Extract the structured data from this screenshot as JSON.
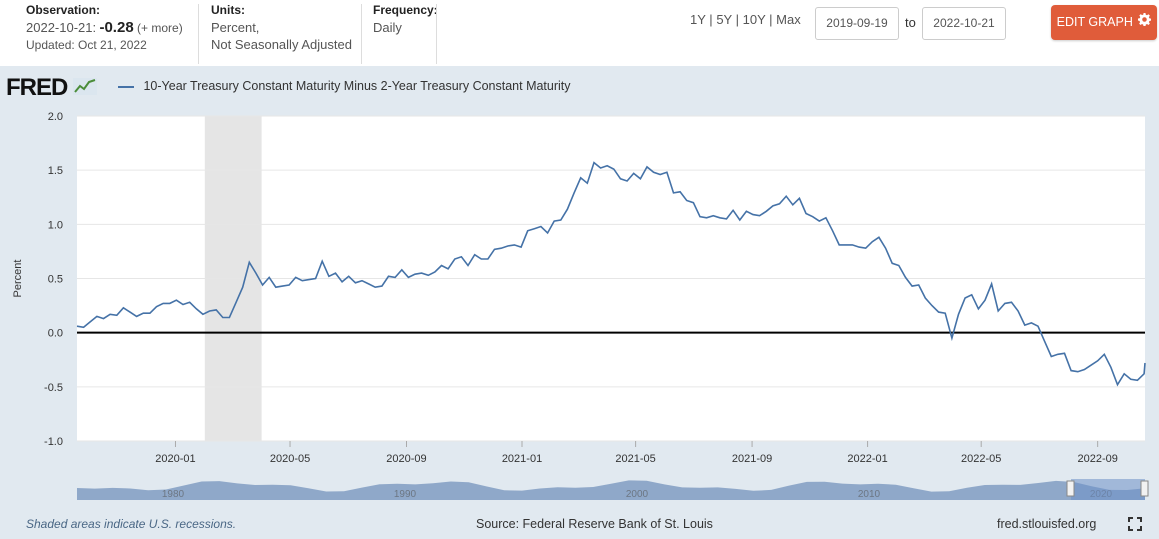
{
  "header": {
    "observation_label": "Observation:",
    "observation_date": "2022-10-21:",
    "observation_value": "-0.28",
    "observation_more": "(+ more)",
    "updated": "Updated: Oct 21, 2022",
    "units_label": "Units:",
    "units_value_1": "Percent,",
    "units_value_2": "Not Seasonally Adjusted",
    "frequency_label": "Frequency:",
    "frequency_value": "Daily",
    "range_1y": "1Y",
    "range_5y": "5Y",
    "range_10y": "10Y",
    "range_max": "Max",
    "sep": "|",
    "start_date": "2019-09-19",
    "to_label": "to",
    "end_date": "2022-10-21",
    "edit_label": "EDIT GRAPH"
  },
  "logo_text": "FRED",
  "colors": {
    "series": "#4572a7",
    "edit_button": "#e05c3a",
    "recession": "#e5e5e5",
    "navigator": "#4572a7"
  },
  "footer": {
    "recession_note": "Shaded areas indicate U.S. recessions.",
    "source": "Source: Federal Reserve Bank of St. Louis",
    "url": "fred.stlouisfed.org"
  },
  "navigator": {
    "labels": [
      "1980",
      "1990",
      "2000",
      "2010",
      "2020"
    ]
  },
  "chart_data": {
    "type": "line",
    "title": "",
    "ylabel": "Percent",
    "xlabel": "",
    "ylim": [
      -1.0,
      2.0
    ],
    "xlim": [
      "2019-09-19",
      "2022-10-21"
    ],
    "yticks": [
      "-1.0",
      "-0.5",
      "0.0",
      "0.5",
      "1.0",
      "1.5",
      "2.0"
    ],
    "xticks": [
      {
        "date": "2020-01-01",
        "label": "2020-01"
      },
      {
        "date": "2020-05-01",
        "label": "2020-05"
      },
      {
        "date": "2020-09-01",
        "label": "2020-09"
      },
      {
        "date": "2021-01-01",
        "label": "2021-01"
      },
      {
        "date": "2021-05-01",
        "label": "2021-05"
      },
      {
        "date": "2021-09-01",
        "label": "2021-09"
      },
      {
        "date": "2022-01-01",
        "label": "2022-01"
      },
      {
        "date": "2022-05-01",
        "label": "2022-05"
      },
      {
        "date": "2022-09-01",
        "label": "2022-09"
      }
    ],
    "recession": [
      "2020-02-01",
      "2020-04-01"
    ],
    "zero_line": 0,
    "grid": true,
    "legend_position": "top-left",
    "series": [
      {
        "name": "10-Year Treasury Constant Maturity Minus 2-Year Treasury Constant Maturity",
        "points": [
          [
            "2019-09-19",
            0.06
          ],
          [
            "2019-09-26",
            0.05
          ],
          [
            "2019-10-03",
            0.1
          ],
          [
            "2019-10-10",
            0.15
          ],
          [
            "2019-10-17",
            0.13
          ],
          [
            "2019-10-24",
            0.17
          ],
          [
            "2019-10-31",
            0.16
          ],
          [
            "2019-11-07",
            0.23
          ],
          [
            "2019-11-14",
            0.19
          ],
          [
            "2019-11-21",
            0.15
          ],
          [
            "2019-11-28",
            0.18
          ],
          [
            "2019-12-05",
            0.18
          ],
          [
            "2019-12-12",
            0.24
          ],
          [
            "2019-12-19",
            0.27
          ],
          [
            "2019-12-26",
            0.27
          ],
          [
            "2020-01-02",
            0.3
          ],
          [
            "2020-01-09",
            0.26
          ],
          [
            "2020-01-16",
            0.28
          ],
          [
            "2020-01-23",
            0.22
          ],
          [
            "2020-01-30",
            0.17
          ],
          [
            "2020-02-06",
            0.2
          ],
          [
            "2020-02-13",
            0.21
          ],
          [
            "2020-02-20",
            0.14
          ],
          [
            "2020-02-27",
            0.14
          ],
          [
            "2020-03-05",
            0.28
          ],
          [
            "2020-03-12",
            0.42
          ],
          [
            "2020-03-19",
            0.65
          ],
          [
            "2020-03-26",
            0.55
          ],
          [
            "2020-04-02",
            0.44
          ],
          [
            "2020-04-09",
            0.51
          ],
          [
            "2020-04-16",
            0.42
          ],
          [
            "2020-04-23",
            0.43
          ],
          [
            "2020-04-30",
            0.44
          ],
          [
            "2020-05-07",
            0.51
          ],
          [
            "2020-05-14",
            0.48
          ],
          [
            "2020-05-21",
            0.49
          ],
          [
            "2020-05-28",
            0.5
          ],
          [
            "2020-06-04",
            0.66
          ],
          [
            "2020-06-11",
            0.52
          ],
          [
            "2020-06-18",
            0.55
          ],
          [
            "2020-06-25",
            0.47
          ],
          [
            "2020-07-02",
            0.52
          ],
          [
            "2020-07-09",
            0.46
          ],
          [
            "2020-07-16",
            0.48
          ],
          [
            "2020-07-23",
            0.45
          ],
          [
            "2020-07-30",
            0.42
          ],
          [
            "2020-08-06",
            0.43
          ],
          [
            "2020-08-13",
            0.52
          ],
          [
            "2020-08-20",
            0.51
          ],
          [
            "2020-08-27",
            0.58
          ],
          [
            "2020-09-03",
            0.51
          ],
          [
            "2020-09-10",
            0.54
          ],
          [
            "2020-09-17",
            0.55
          ],
          [
            "2020-09-24",
            0.53
          ],
          [
            "2020-10-01",
            0.56
          ],
          [
            "2020-10-08",
            0.62
          ],
          [
            "2020-10-15",
            0.59
          ],
          [
            "2020-10-22",
            0.68
          ],
          [
            "2020-10-29",
            0.7
          ],
          [
            "2020-11-05",
            0.62
          ],
          [
            "2020-11-12",
            0.72
          ],
          [
            "2020-11-19",
            0.68
          ],
          [
            "2020-11-26",
            0.68
          ],
          [
            "2020-12-03",
            0.77
          ],
          [
            "2020-12-10",
            0.78
          ],
          [
            "2020-12-17",
            0.8
          ],
          [
            "2020-12-24",
            0.81
          ],
          [
            "2020-12-31",
            0.79
          ],
          [
            "2021-01-07",
            0.94
          ],
          [
            "2021-01-14",
            0.96
          ],
          [
            "2021-01-21",
            0.98
          ],
          [
            "2021-01-28",
            0.92
          ],
          [
            "2021-02-04",
            1.03
          ],
          [
            "2021-02-11",
            1.04
          ],
          [
            "2021-02-18",
            1.14
          ],
          [
            "2021-02-25",
            1.29
          ],
          [
            "2021-03-04",
            1.43
          ],
          [
            "2021-03-11",
            1.38
          ],
          [
            "2021-03-18",
            1.57
          ],
          [
            "2021-03-25",
            1.52
          ],
          [
            "2021-04-01",
            1.54
          ],
          [
            "2021-04-08",
            1.51
          ],
          [
            "2021-04-15",
            1.42
          ],
          [
            "2021-04-22",
            1.4
          ],
          [
            "2021-04-29",
            1.47
          ],
          [
            "2021-05-06",
            1.42
          ],
          [
            "2021-05-13",
            1.53
          ],
          [
            "2021-05-20",
            1.48
          ],
          [
            "2021-05-27",
            1.46
          ],
          [
            "2021-06-03",
            1.48
          ],
          [
            "2021-06-10",
            1.29
          ],
          [
            "2021-06-17",
            1.3
          ],
          [
            "2021-06-24",
            1.22
          ],
          [
            "2021-07-01",
            1.2
          ],
          [
            "2021-07-08",
            1.07
          ],
          [
            "2021-07-15",
            1.06
          ],
          [
            "2021-07-22",
            1.08
          ],
          [
            "2021-07-29",
            1.06
          ],
          [
            "2021-08-05",
            1.05
          ],
          [
            "2021-08-12",
            1.13
          ],
          [
            "2021-08-19",
            1.04
          ],
          [
            "2021-08-26",
            1.12
          ],
          [
            "2021-09-02",
            1.09
          ],
          [
            "2021-09-09",
            1.08
          ],
          [
            "2021-09-16",
            1.12
          ],
          [
            "2021-09-23",
            1.17
          ],
          [
            "2021-09-30",
            1.19
          ],
          [
            "2021-10-07",
            1.26
          ],
          [
            "2021-10-14",
            1.18
          ],
          [
            "2021-10-21",
            1.24
          ],
          [
            "2021-10-28",
            1.1
          ],
          [
            "2021-11-04",
            1.07
          ],
          [
            "2021-11-11",
            1.03
          ],
          [
            "2021-11-18",
            1.06
          ],
          [
            "2021-11-25",
            0.94
          ],
          [
            "2021-12-02",
            0.81
          ],
          [
            "2021-12-09",
            0.81
          ],
          [
            "2021-12-16",
            0.81
          ],
          [
            "2021-12-23",
            0.79
          ],
          [
            "2021-12-30",
            0.78
          ],
          [
            "2022-01-06",
            0.84
          ],
          [
            "2022-01-13",
            0.88
          ],
          [
            "2022-01-20",
            0.78
          ],
          [
            "2022-01-27",
            0.64
          ],
          [
            "2022-02-03",
            0.62
          ],
          [
            "2022-02-10",
            0.51
          ],
          [
            "2022-02-17",
            0.43
          ],
          [
            "2022-02-24",
            0.44
          ],
          [
            "2022-03-03",
            0.32
          ],
          [
            "2022-03-10",
            0.25
          ],
          [
            "2022-03-17",
            0.19
          ],
          [
            "2022-03-24",
            0.18
          ],
          [
            "2022-03-31",
            -0.05
          ],
          [
            "2022-04-07",
            0.17
          ],
          [
            "2022-04-14",
            0.32
          ],
          [
            "2022-04-21",
            0.35
          ],
          [
            "2022-04-28",
            0.22
          ],
          [
            "2022-05-05",
            0.3
          ],
          [
            "2022-05-12",
            0.45
          ],
          [
            "2022-05-19",
            0.2
          ],
          [
            "2022-05-26",
            0.27
          ],
          [
            "2022-06-02",
            0.28
          ],
          [
            "2022-06-09",
            0.2
          ],
          [
            "2022-06-16",
            0.07
          ],
          [
            "2022-06-23",
            0.09
          ],
          [
            "2022-06-30",
            0.06
          ],
          [
            "2022-07-07",
            -0.08
          ],
          [
            "2022-07-14",
            -0.22
          ],
          [
            "2022-07-21",
            -0.2
          ],
          [
            "2022-07-28",
            -0.19
          ],
          [
            "2022-08-04",
            -0.35
          ],
          [
            "2022-08-11",
            -0.36
          ],
          [
            "2022-08-18",
            -0.34
          ],
          [
            "2022-08-25",
            -0.3
          ],
          [
            "2022-09-01",
            -0.26
          ],
          [
            "2022-09-08",
            -0.2
          ],
          [
            "2022-09-15",
            -0.32
          ],
          [
            "2022-09-22",
            -0.48
          ],
          [
            "2022-09-29",
            -0.38
          ],
          [
            "2022-10-06",
            -0.43
          ],
          [
            "2022-10-13",
            -0.44
          ],
          [
            "2022-10-20",
            -0.38
          ],
          [
            "2022-10-21",
            -0.28
          ]
        ]
      }
    ]
  }
}
